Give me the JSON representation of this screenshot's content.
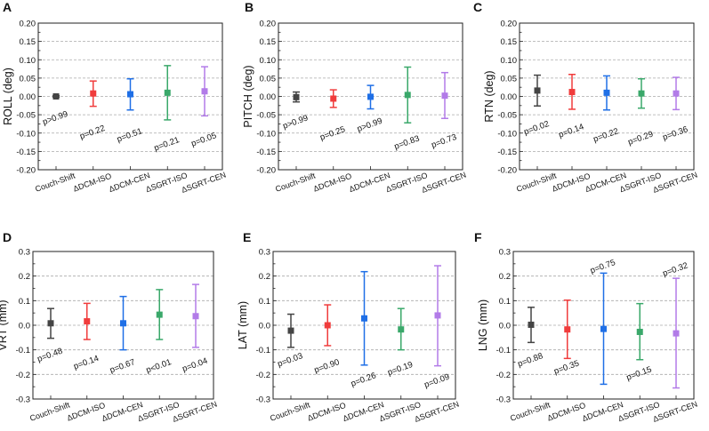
{
  "chart_data": [
    {
      "type": "errorbar",
      "panel": "A",
      "ylabel": "ROLL (deg)",
      "ylim": [
        -0.2,
        0.2
      ],
      "ystep": 0.05,
      "decimals": 2,
      "categories": [
        "Couch-Shift",
        "ΔDCM-ISO",
        "ΔDCM-CEN",
        "ΔSGRT-ISO",
        "ΔSGRT-CEN"
      ],
      "mean": [
        0.0,
        0.008,
        0.006,
        0.01,
        0.014
      ],
      "low": [
        -0.002,
        -0.027,
        -0.037,
        -0.064,
        -0.053
      ],
      "high": [
        0.002,
        0.042,
        0.048,
        0.084,
        0.081
      ],
      "p_labels": [
        "p>0.99",
        "p=0.22",
        "p=0.51",
        "p=0.21",
        "p=0.05"
      ],
      "p_label_y": [
        -0.058,
        -0.097,
        -0.105,
        -0.129,
        -0.117
      ]
    },
    {
      "type": "errorbar",
      "panel": "B",
      "ylabel": "PITCH (deg)",
      "ylim": [
        -0.2,
        0.2
      ],
      "ystep": 0.05,
      "decimals": 2,
      "categories": [
        "Couch-Shift",
        "ΔDCM-ISO",
        "ΔDCM-CEN",
        "ΔSGRT-ISO",
        "ΔSGRT-CEN"
      ],
      "mean": [
        -0.002,
        -0.006,
        -0.001,
        0.004,
        0.002
      ],
      "low": [
        -0.015,
        -0.03,
        -0.034,
        -0.072,
        -0.06
      ],
      "high": [
        0.012,
        0.018,
        0.03,
        0.08,
        0.065
      ],
      "p_labels": [
        "p>0.99",
        "p=0.25",
        "p>0.99",
        "p=0.83",
        "p=0.73"
      ],
      "p_label_y": [
        -0.069,
        -0.1,
        -0.077,
        -0.125,
        -0.121
      ]
    },
    {
      "type": "errorbar",
      "panel": "C",
      "ylabel": "RTN (deg)",
      "ylim": [
        -0.2,
        0.2
      ],
      "ystep": 0.05,
      "decimals": 2,
      "categories": [
        "Couch-Shift",
        "ΔDCM-ISO",
        "ΔDCM-CEN",
        "ΔSGRT-ISO",
        "ΔSGRT-CEN"
      ],
      "mean": [
        0.016,
        0.012,
        0.01,
        0.008,
        0.008
      ],
      "low": [
        -0.026,
        -0.035,
        -0.037,
        -0.032,
        -0.036
      ],
      "high": [
        0.058,
        0.06,
        0.056,
        0.048,
        0.052
      ],
      "p_labels": [
        "p=0.02",
        "p=0.14",
        "p=0.22",
        "p=0.29",
        "p=0.36"
      ],
      "p_label_y": [
        -0.085,
        -0.093,
        -0.105,
        -0.113,
        -0.1
      ]
    },
    {
      "type": "errorbar",
      "panel": "D",
      "ylabel": "VRT (mm)",
      "ylim": [
        -0.3,
        0.3
      ],
      "ystep": 0.1,
      "decimals": 1,
      "categories": [
        "Couch-Shift",
        "ΔDCM-ISO",
        "ΔDCM-CEN",
        "ΔSGRT-ISO",
        "ΔSGRT-CEN"
      ],
      "mean": [
        0.008,
        0.016,
        0.008,
        0.043,
        0.037
      ],
      "low": [
        -0.053,
        -0.058,
        -0.1,
        -0.058,
        -0.09
      ],
      "high": [
        0.068,
        0.089,
        0.117,
        0.145,
        0.166
      ],
      "p_labels": [
        "p=0.48",
        "p=0.14",
        "p=0.67",
        "p<0.01",
        "p=0.04"
      ],
      "p_label_y": [
        -0.12,
        -0.15,
        -0.165,
        -0.165,
        -0.16
      ]
    },
    {
      "type": "errorbar",
      "panel": "E",
      "ylabel": "LAT (mm)",
      "ylim": [
        -0.3,
        0.3
      ],
      "ystep": 0.1,
      "decimals": 1,
      "categories": [
        "Couch-Shift",
        "ΔDCM-ISO",
        "ΔDCM-CEN",
        "ΔSGRT-ISO",
        "ΔSGRT-CEN"
      ],
      "mean": [
        -0.022,
        0.0,
        0.028,
        -0.017,
        0.04
      ],
      "low": [
        -0.09,
        -0.083,
        -0.162,
        -0.1,
        -0.165
      ],
      "high": [
        0.045,
        0.083,
        0.218,
        0.068,
        0.242
      ],
      "p_labels": [
        "p=0.03",
        "p=0.90",
        "p=0.26",
        "p=0.19",
        "p=0.09"
      ],
      "p_label_y": [
        -0.14,
        -0.165,
        -0.22,
        -0.175,
        -0.225
      ]
    },
    {
      "type": "errorbar",
      "panel": "F",
      "ylabel": "LNG (mm)",
      "ylim": [
        -0.3,
        0.3
      ],
      "ystep": 0.1,
      "decimals": 1,
      "categories": [
        "Couch-Shift",
        "ΔDCM-ISO",
        "ΔDCM-CEN",
        "ΔSGRT-ISO",
        "ΔSGRT-CEN"
      ],
      "mean": [
        0.002,
        -0.017,
        -0.015,
        -0.027,
        -0.033
      ],
      "low": [
        -0.07,
        -0.135,
        -0.24,
        -0.14,
        -0.255
      ],
      "high": [
        0.073,
        0.102,
        0.212,
        0.088,
        0.191
      ],
      "p_labels": [
        "p=0.88",
        "p=0.35",
        "p=0.75",
        "p=0.15",
        "p=0.32"
      ],
      "p_label_y": [
        -0.14,
        -0.17,
        0.24,
        -0.195,
        0.228
      ]
    }
  ],
  "colors": [
    "#444444",
    "#f03c3c",
    "#1f6fe6",
    "#3aa86a",
    "#b27be8"
  ]
}
